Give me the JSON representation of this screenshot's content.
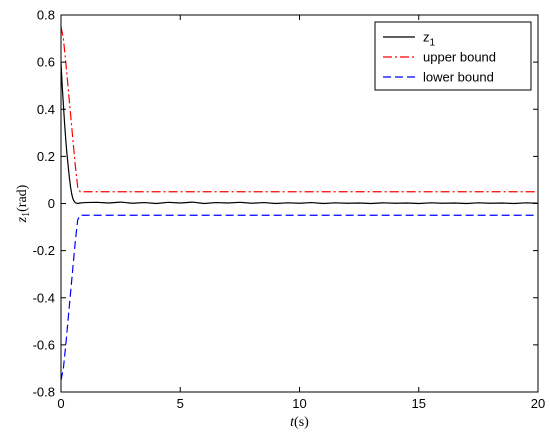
{
  "chart_data": {
    "type": "line",
    "xlabel": "t(s)",
    "ylabel": "z1(rad)",
    "xlim": [
      0,
      20
    ],
    "ylim": [
      -0.8,
      0.8
    ],
    "xticks": [
      0,
      5,
      10,
      15,
      20
    ],
    "yticks": [
      -0.8,
      -0.6,
      -0.4,
      -0.2,
      0,
      0.2,
      0.4,
      0.6,
      0.8
    ],
    "grid": false,
    "legend_position": "top-right",
    "series": [
      {
        "name": "z1",
        "color": "#000000",
        "dash": "solid",
        "x": [
          0,
          0.05,
          0.1,
          0.15,
          0.2,
          0.25,
          0.3,
          0.35,
          0.4,
          0.45,
          0.5,
          0.55,
          0.6,
          0.7,
          0.8,
          1.0,
          1.5,
          2,
          2.5,
          3,
          3.5,
          4,
          4.5,
          5,
          5.5,
          6,
          6.5,
          7,
          7.5,
          8,
          8.5,
          9,
          9.5,
          10,
          10.5,
          11,
          11.5,
          12,
          12.5,
          13,
          13.5,
          14,
          14.5,
          15,
          15.5,
          16,
          16.5,
          17,
          17.5,
          18,
          18.5,
          19,
          19.5,
          20
        ],
        "y": [
          0.6,
          0.5,
          0.42,
          0.34,
          0.27,
          0.21,
          0.16,
          0.11,
          0.07,
          0.04,
          0.02,
          0.01,
          0.003,
          0.0,
          0.002,
          0.004,
          0.005,
          0.002,
          0.006,
          0.001,
          0.004,
          0.0,
          0.005,
          0.002,
          0.006,
          0.0,
          0.004,
          0.002,
          0.005,
          0.001,
          0.004,
          0.0,
          0.003,
          0.001,
          0.004,
          0.0,
          0.003,
          0.001,
          0.002,
          0.0,
          0.003,
          0.001,
          0.002,
          0.0,
          0.003,
          0.001,
          0.002,
          0.0,
          0.003,
          0.001,
          0.002,
          0.0,
          0.003,
          0.001
        ]
      },
      {
        "name": "upper bound",
        "color": "#ff0000",
        "dash": "dashdot",
        "x": [
          0,
          0.1,
          0.2,
          0.3,
          0.4,
          0.5,
          0.6,
          0.7,
          0.8,
          20
        ],
        "y": [
          0.75,
          0.7,
          0.6,
          0.49,
          0.38,
          0.27,
          0.16,
          0.07,
          0.05,
          0.05
        ]
      },
      {
        "name": "lower bound",
        "color": "#0000ff",
        "dash": "dashed",
        "x": [
          0,
          0.1,
          0.2,
          0.3,
          0.4,
          0.5,
          0.6,
          0.7,
          0.8,
          20
        ],
        "y": [
          -0.75,
          -0.7,
          -0.6,
          -0.49,
          -0.38,
          -0.27,
          -0.16,
          -0.07,
          -0.05,
          -0.05
        ]
      }
    ]
  }
}
